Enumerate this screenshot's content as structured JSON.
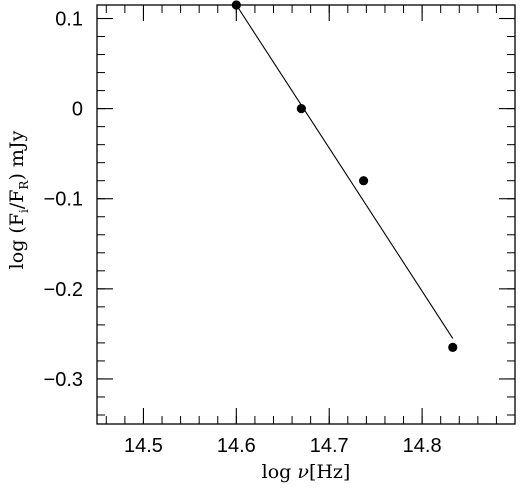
{
  "chart_data": {
    "type": "scatter",
    "xlabel_parts": {
      "prefix": "log ",
      "symbol": "ν",
      "suffix": "[Hz]"
    },
    "ylabel_parts": {
      "prefix": "log (F",
      "sub1": "i",
      "mid": "/F",
      "sub2": "R",
      "suffix": ") mJy"
    },
    "xlim": [
      14.45,
      14.9
    ],
    "ylim": [
      -0.35,
      0.115
    ],
    "xticks": [
      {
        "value": 14.5,
        "label": "14.5"
      },
      {
        "value": 14.6,
        "label": "14.6"
      },
      {
        "value": 14.7,
        "label": "14.7"
      },
      {
        "value": 14.8,
        "label": "14.8"
      }
    ],
    "yticks": [
      {
        "value": 0.1,
        "label": "0.1"
      },
      {
        "value": 0.0,
        "label": "0"
      },
      {
        "value": -0.1,
        "label": "−0.1"
      },
      {
        "value": -0.2,
        "label": "−0.2"
      },
      {
        "value": -0.3,
        "label": "−0.3"
      }
    ],
    "x_minor_step": 0.02,
    "y_minor_step": 0.02,
    "series": [
      {
        "points": [
          {
            "x": 14.6,
            "y": 0.115
          },
          {
            "x": 14.67,
            "y": 0.0
          },
          {
            "x": 14.737,
            "y": -0.08
          },
          {
            "x": 14.833,
            "y": -0.265
          }
        ]
      }
    ],
    "fit_line": {
      "x": [
        14.6,
        14.833
      ],
      "y": [
        0.115,
        -0.255
      ]
    },
    "grid": false,
    "legend": "none"
  }
}
